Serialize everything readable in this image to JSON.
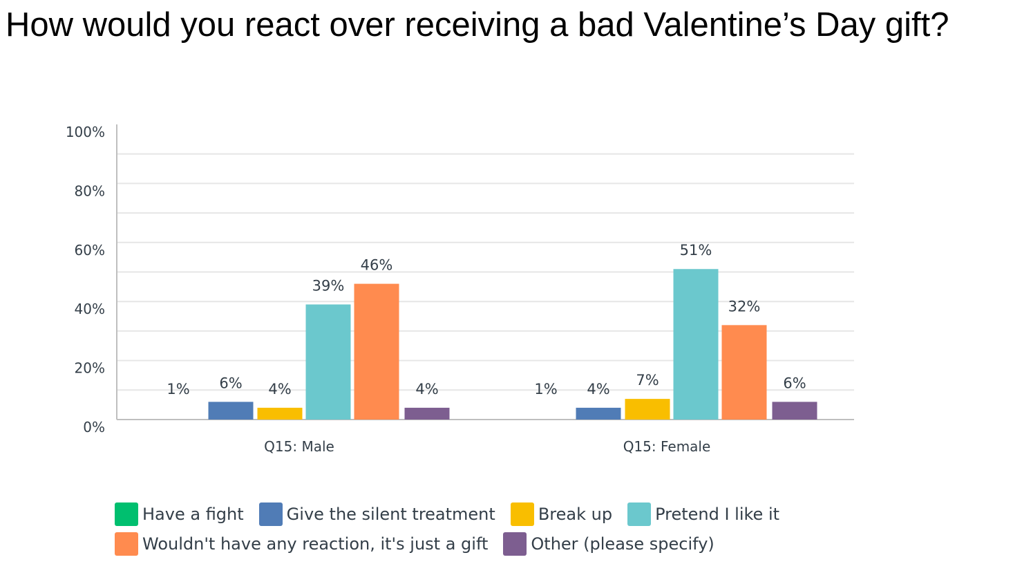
{
  "title": "How would you react over receiving a bad Valentine’s Day gift?",
  "chart_data": {
    "type": "bar",
    "title": "How would you react over receiving a bad Valentine’s Day gift?",
    "xlabel": "",
    "ylabel": "",
    "ylim": [
      0,
      100
    ],
    "y_ticks": [
      "0%",
      "20%",
      "40%",
      "60%",
      "80%",
      "100%"
    ],
    "categories": [
      "Q15: Male",
      "Q15: Female"
    ],
    "series": [
      {
        "name": "Have a fight",
        "color": "#00bf6f",
        "values": [
          1,
          1
        ],
        "labels": [
          "1%",
          "1%"
        ]
      },
      {
        "name": "Give the silent treatment",
        "color": "#507cb6",
        "values": [
          6,
          4
        ],
        "labels": [
          "6%",
          "4%"
        ]
      },
      {
        "name": "Break up",
        "color": "#f9be00",
        "values": [
          4,
          7
        ],
        "labels": [
          "4%",
          "7%"
        ]
      },
      {
        "name": "Pretend I like it",
        "color": "#6bc8cd",
        "values": [
          39,
          51
        ],
        "labels": [
          "39%",
          "51%"
        ]
      },
      {
        "name": "Wouldn't have any reaction, it's just a gift",
        "color": "#ff8b4f",
        "values": [
          46,
          32
        ],
        "labels": [
          "46%",
          "32%"
        ]
      },
      {
        "name": "Other (please specify)",
        "color": "#7d5e90",
        "values": [
          4,
          6
        ],
        "labels": [
          "4%",
          "6%"
        ]
      }
    ],
    "grid": true,
    "legend_position": "bottom"
  },
  "legend": {
    "rows": [
      [
        0,
        1,
        2,
        3
      ],
      [
        4,
        5
      ]
    ]
  }
}
